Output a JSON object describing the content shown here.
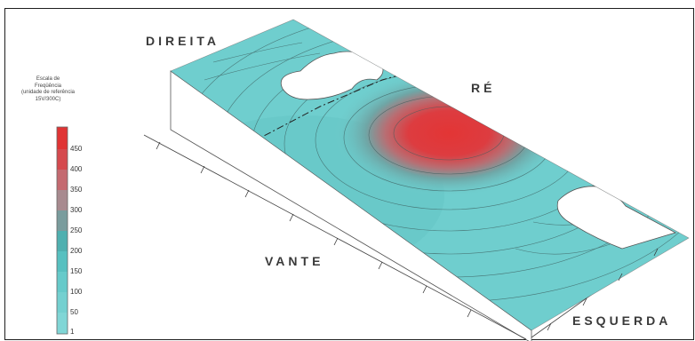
{
  "labels": {
    "direita": "DIREITA",
    "re": "RÉ",
    "vante": "VANTE",
    "esquerda": "ESQUERDA"
  },
  "legend": {
    "title": [
      "Escala de",
      "Freqüência",
      "(unidade de referência",
      "15V/300C)"
    ],
    "ticks": [
      "450",
      "400",
      "350",
      "300",
      "250",
      "200",
      "150",
      "100",
      "50",
      "1"
    ],
    "colors": [
      "#e03434",
      "#d54a4e",
      "#c46a70",
      "#a88a8f",
      "#7a9c9d",
      "#4fb0b0",
      "#57c0c0",
      "#66caca",
      "#74d0d0",
      "#80d6d6"
    ]
  },
  "colors": {
    "surface": "#6fcece",
    "hot": "#e33a3a",
    "contour": "#3c5c5c"
  }
}
